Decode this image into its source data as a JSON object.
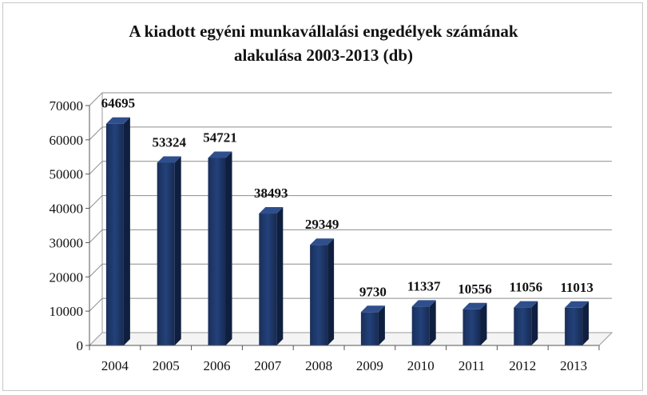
{
  "chart_data": {
    "type": "bar",
    "title_line1": "A kiadott egyéni munkavállalási engedélyek számának",
    "title_line2": "alakulása 2003-2013 (db)",
    "xlabel": "",
    "ylabel": "",
    "categories": [
      "2004",
      "2005",
      "2006",
      "2007",
      "2008",
      "2009",
      "2010",
      "2011",
      "2012",
      "2013"
    ],
    "values": [
      64695,
      53324,
      54721,
      38493,
      29349,
      9730,
      11337,
      10556,
      11056,
      11013
    ],
    "ylim": [
      0,
      70000
    ],
    "yticks": [
      "0",
      "10000",
      "20000",
      "30000",
      "40000",
      "50000",
      "60000",
      "70000"
    ],
    "data_labels": [
      "64695",
      "53324",
      "54721",
      "38493",
      "29349",
      "9730",
      "11337",
      "10556",
      "11056",
      "11013"
    ],
    "grid": true,
    "style": "3d-column",
    "bar_color": "#1f3b6e"
  }
}
